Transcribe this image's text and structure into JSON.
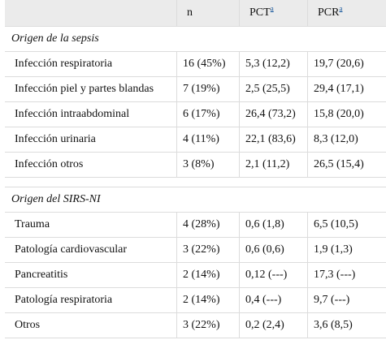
{
  "header": {
    "col_n": "n",
    "col_pct": "PCT",
    "col_pct_note": "a",
    "col_pcr": "PCR",
    "col_pcr_note": "a"
  },
  "sections": [
    {
      "title": "Origen de la sepsis",
      "rows": [
        {
          "label": "Infección respiratoria",
          "n": "16 (45%)",
          "pct": "5,3 (12,2)",
          "pcr": "19,7 (20,6)"
        },
        {
          "label": "Infección piel y partes blandas",
          "n": "7 (19%)",
          "pct": "2,5 (25,5)",
          "pcr": "29,4 (17,1)"
        },
        {
          "label": "Infección intraabdominal",
          "n": "6 (17%)",
          "pct": "26,4 (73,2)",
          "pcr": "15,8 (20,0)"
        },
        {
          "label": "Infección urinaria",
          "n": "4 (11%)",
          "pct": "22,1 (83,6)",
          "pcr": "8,3 (12,0)"
        },
        {
          "label": "Infección otros",
          "n": "3 (8%)",
          "pct": "2,1 (11,2)",
          "pcr": "26,5 (15,4)"
        }
      ]
    },
    {
      "title": "Origen del SIRS-NI",
      "rows": [
        {
          "label": "Trauma",
          "n": "4 (28%)",
          "pct": "0,6 (1,8)",
          "pcr": "6,5 (10,5)"
        },
        {
          "label": "Patología cardiovascular",
          "n": "3 (22%)",
          "pct": "0,6 (0,6)",
          "pcr": "1,9 (1,3)"
        },
        {
          "label": "Pancreatitis",
          "n": "2 (14%)",
          "pct": "0,12 (---)",
          "pcr": "17,3 (---)"
        },
        {
          "label": "Patología respiratoria",
          "n": "2 (14%)",
          "pct": "0,4 (---)",
          "pcr": "9,7 (---)"
        },
        {
          "label": "Otros",
          "n": "3 (22%)",
          "pct": "0,2 (2,4)",
          "pcr": "3,6 (8,5)"
        }
      ]
    }
  ]
}
